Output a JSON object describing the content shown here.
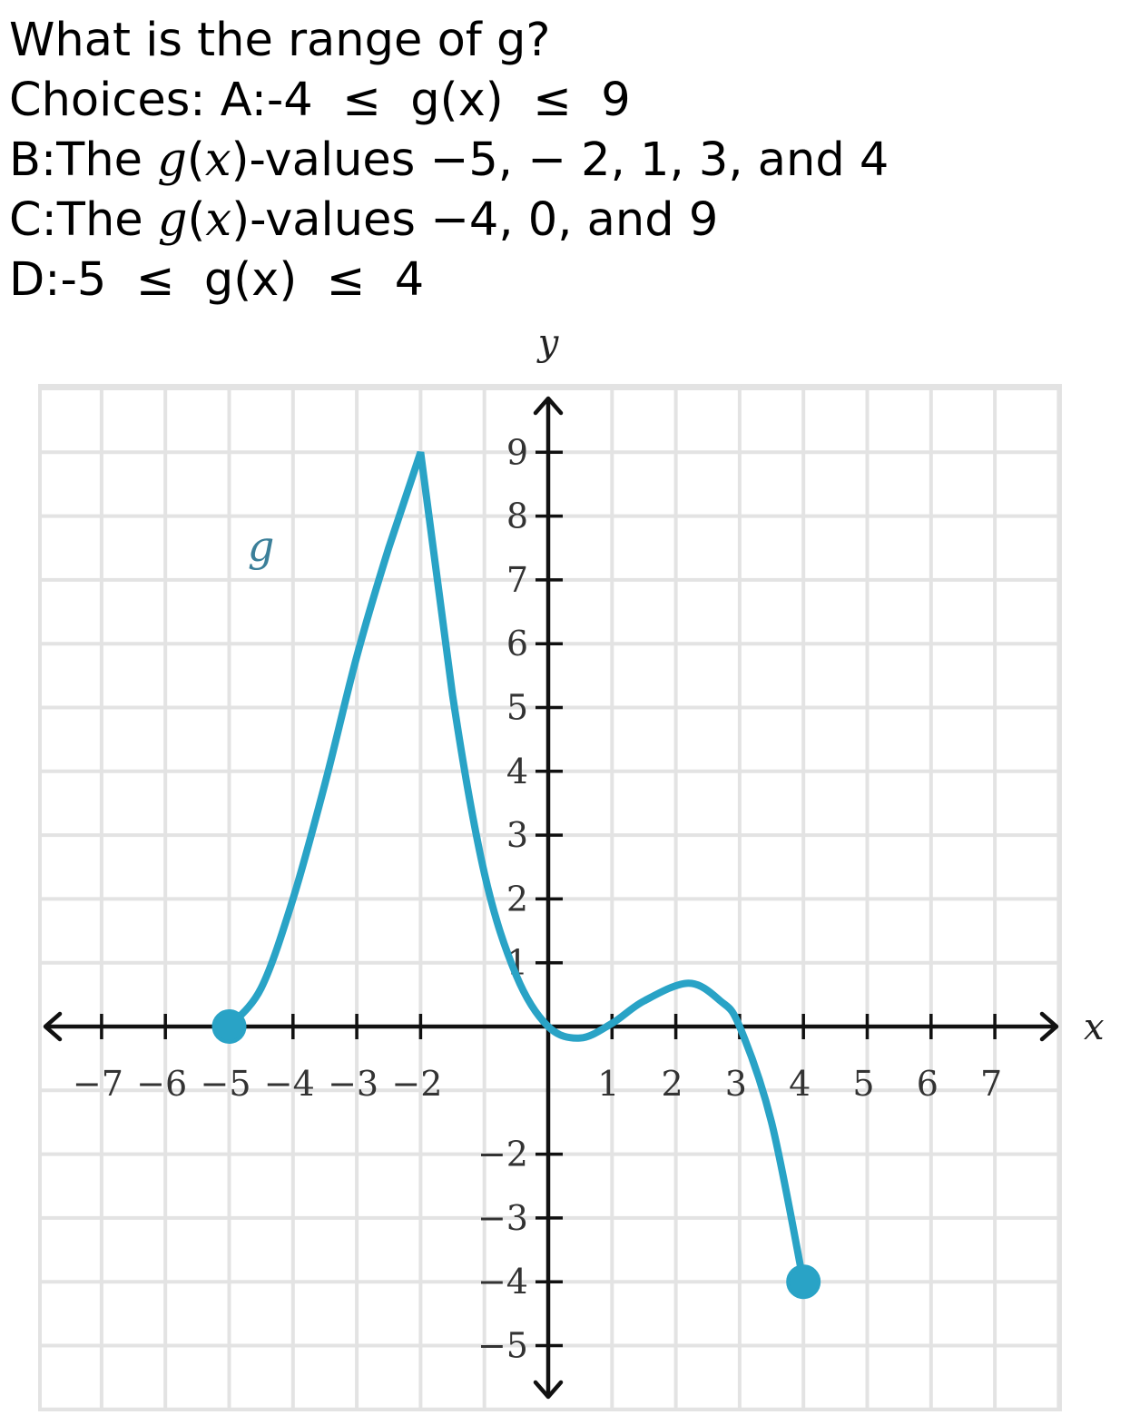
{
  "question": {
    "prompt": "What is the range of g?",
    "choices_label": "Choices:",
    "choice_a": "A:-4  ≤  g(x)  ≤  9",
    "choice_b_prefix": "B:The ",
    "choice_b_func": "g",
    "choice_b_open": "(",
    "choice_b_var": "x",
    "choice_b_suffix": ")-values −5, − 2, 1, 3, and 4",
    "choice_c_prefix": "C:The ",
    "choice_c_func": "g",
    "choice_c_open": "(",
    "choice_c_var": "x",
    "choice_c_suffix": ")-values −4, 0, and 9",
    "choice_d": "D:-5  ≤  g(x)  ≤  4"
  },
  "chart_data": {
    "type": "line",
    "title": "",
    "xlabel": "x",
    "ylabel": "y",
    "xlim": [
      -8,
      8
    ],
    "ylim": [
      -6,
      10
    ],
    "grid": true,
    "x_ticks": [
      -7,
      -6,
      -5,
      -4,
      -3,
      -2,
      1,
      2,
      3,
      4,
      5,
      6,
      7
    ],
    "x_tick_labels": [
      "−7",
      "−6",
      "−5",
      "−4",
      "−3",
      "−2",
      "1",
      "2",
      "3",
      "4",
      "5",
      "6",
      "7"
    ],
    "y_ticks": [
      9,
      8,
      7,
      6,
      5,
      4,
      3,
      2,
      1,
      -2,
      -3,
      -4,
      -5
    ],
    "y_tick_labels": [
      "9",
      "8",
      "7",
      "6",
      "5",
      "4",
      "3",
      "2",
      "1",
      "−2",
      "−3",
      "−4",
      "−5"
    ],
    "series": [
      {
        "name": "g",
        "color": "#29a3c6",
        "points": [
          {
            "x": -5,
            "y": 0
          },
          {
            "x": -4.5,
            "y": 0.6
          },
          {
            "x": -4,
            "y": 2.0
          },
          {
            "x": -3.5,
            "y": 3.8
          },
          {
            "x": -3,
            "y": 5.8
          },
          {
            "x": -2.5,
            "y": 7.5
          },
          {
            "x": -2,
            "y": 9
          },
          {
            "x": -1.5,
            "y": 5.2
          },
          {
            "x": -1,
            "y": 2.4
          },
          {
            "x": -0.5,
            "y": 0.8
          },
          {
            "x": 0,
            "y": 0
          },
          {
            "x": 0.5,
            "y": -0.18
          },
          {
            "x": 1,
            "y": 0.05
          },
          {
            "x": 1.5,
            "y": 0.4
          },
          {
            "x": 2.2,
            "y": 0.68
          },
          {
            "x": 2.7,
            "y": 0.4
          },
          {
            "x": 3,
            "y": 0
          },
          {
            "x": 3.5,
            "y": -1.5
          },
          {
            "x": 4,
            "y": -4
          }
        ],
        "endpoints": [
          {
            "x": -5,
            "y": 0,
            "closed": true
          },
          {
            "x": 4,
            "y": -4,
            "closed": true
          }
        ]
      }
    ]
  }
}
